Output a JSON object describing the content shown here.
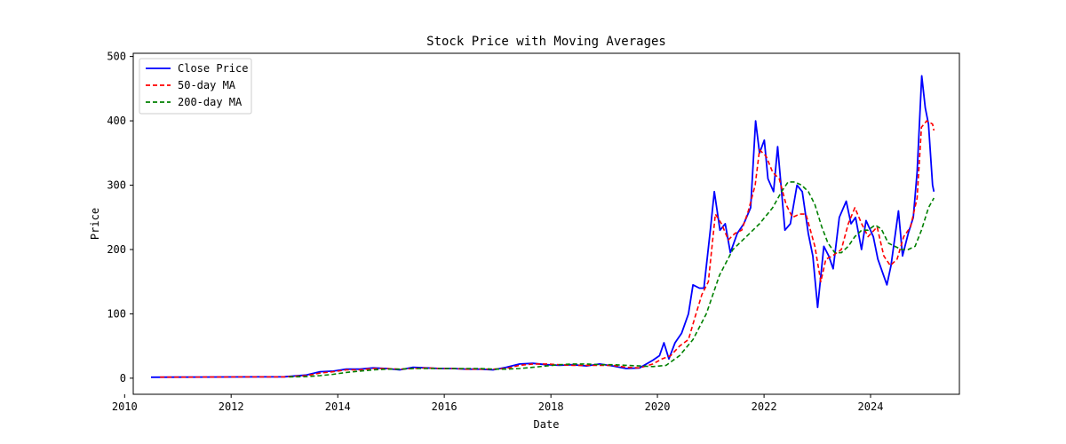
{
  "chart_data": {
    "type": "line",
    "title": "Stock Price with Moving Averages",
    "xlabel": "Date",
    "ylabel": "Price",
    "xlim": [
      "2010-03-01",
      "2025-09-01"
    ],
    "ylim": [
      -25,
      505
    ],
    "x_ticks": [
      "2010",
      "2012",
      "2014",
      "2016",
      "2018",
      "2020",
      "2022",
      "2024"
    ],
    "y_ticks": [
      0,
      100,
      200,
      300,
      400,
      500
    ],
    "grid": false,
    "legend_position": "upper-left",
    "series": [
      {
        "name": "Close Price",
        "color": "#0000ff",
        "style": "solid",
        "x": [
          "2010-07-01",
          "2011-01-01",
          "2011-07-01",
          "2012-01-01",
          "2012-07-01",
          "2013-01-01",
          "2013-06-01",
          "2013-09-01",
          "2013-12-01",
          "2014-03-01",
          "2014-06-01",
          "2014-09-01",
          "2014-12-01",
          "2015-03-01",
          "2015-06-01",
          "2015-09-01",
          "2015-12-01",
          "2016-03-01",
          "2016-06-01",
          "2016-09-01",
          "2016-12-01",
          "2017-03-01",
          "2017-06-01",
          "2017-09-01",
          "2017-12-01",
          "2018-03-01",
          "2018-06-01",
          "2018-09-01",
          "2018-12-01",
          "2019-03-01",
          "2019-06-01",
          "2019-09-01",
          "2019-12-01",
          "2020-01-15",
          "2020-02-15",
          "2020-03-20",
          "2020-05-01",
          "2020-06-15",
          "2020-08-01",
          "2020-09-01",
          "2020-10-15",
          "2020-11-15",
          "2020-12-31",
          "2021-01-25",
          "2021-03-05",
          "2021-04-10",
          "2021-05-15",
          "2021-07-01",
          "2021-08-15",
          "2021-10-01",
          "2021-11-04",
          "2021-12-01",
          "2022-01-03",
          "2022-01-28",
          "2022-03-07",
          "2022-04-04",
          "2022-05-24",
          "2022-06-30",
          "2022-08-15",
          "2022-09-20",
          "2022-10-31",
          "2022-12-01",
          "2023-01-03",
          "2023-02-15",
          "2023-03-20",
          "2023-04-20",
          "2023-06-01",
          "2023-07-18",
          "2023-08-20",
          "2023-09-20",
          "2023-10-31",
          "2023-12-01",
          "2024-01-20",
          "2024-02-20",
          "2024-04-22",
          "2024-05-20",
          "2024-07-10",
          "2024-08-07",
          "2024-09-15",
          "2024-10-20",
          "2024-11-15",
          "2024-12-17",
          "2025-01-10",
          "2025-02-01",
          "2025-03-01",
          "2025-03-10"
        ],
        "y": [
          1.5,
          1.7,
          1.8,
          1.9,
          2.0,
          2.2,
          5,
          10,
          11,
          14,
          14,
          16,
          15,
          13,
          17,
          16,
          15,
          15,
          14,
          14,
          13,
          17,
          22,
          23,
          21,
          20,
          21,
          19,
          22,
          19,
          15,
          16,
          28,
          35,
          55,
          30,
          55,
          70,
          100,
          145,
          140,
          140,
          235,
          290,
          230,
          240,
          195,
          225,
          240,
          265,
          400,
          350,
          370,
          310,
          290,
          360,
          230,
          240,
          300,
          290,
          225,
          190,
          110,
          205,
          190,
          170,
          250,
          275,
          240,
          250,
          200,
          245,
          220,
          185,
          145,
          175,
          260,
          190,
          225,
          250,
          320,
          470,
          420,
          395,
          300,
          290
        ]
      },
      {
        "name": "50-day MA",
        "color": "#ff0000",
        "style": "dashed",
        "x": [
          "2010-09-01",
          "2011-01-01",
          "2011-07-01",
          "2012-01-01",
          "2012-07-01",
          "2013-01-01",
          "2013-06-01",
          "2013-09-01",
          "2013-12-01",
          "2014-03-01",
          "2014-06-01",
          "2014-09-01",
          "2014-12-01",
          "2015-03-01",
          "2015-06-01",
          "2015-09-01",
          "2015-12-01",
          "2016-03-01",
          "2016-06-01",
          "2016-09-01",
          "2016-12-01",
          "2017-03-01",
          "2017-06-01",
          "2017-09-01",
          "2017-12-01",
          "2018-03-01",
          "2018-06-01",
          "2018-09-01",
          "2018-12-01",
          "2019-03-01",
          "2019-06-01",
          "2019-09-01",
          "2019-12-01",
          "2020-02-01",
          "2020-04-01",
          "2020-06-01",
          "2020-08-01",
          "2020-09-15",
          "2020-11-01",
          "2020-12-15",
          "2021-02-01",
          "2021-03-15",
          "2021-05-01",
          "2021-06-15",
          "2021-08-01",
          "2021-09-15",
          "2021-11-01",
          "2021-12-01",
          "2022-01-15",
          "2022-03-01",
          "2022-04-15",
          "2022-06-01",
          "2022-07-15",
          "2022-09-01",
          "2022-10-15",
          "2022-11-15",
          "2022-12-15",
          "2023-01-25",
          "2023-03-01",
          "2023-04-15",
          "2023-06-15",
          "2023-08-01",
          "2023-09-15",
          "2023-11-01",
          "2023-12-15",
          "2024-02-15",
          "2024-04-01",
          "2024-05-15",
          "2024-07-01",
          "2024-08-15",
          "2024-10-01",
          "2024-11-15",
          "2024-12-15",
          "2025-01-20",
          "2025-03-01",
          "2025-03-10"
        ],
        "y": [
          1.6,
          1.7,
          1.8,
          1.9,
          2.0,
          2.1,
          4,
          8,
          10,
          13,
          13,
          15,
          15,
          14,
          15,
          16,
          15,
          15,
          14,
          14,
          14,
          15,
          20,
          22,
          22,
          21,
          20,
          20,
          20,
          20,
          17,
          16,
          22,
          30,
          35,
          50,
          60,
          95,
          130,
          150,
          255,
          240,
          215,
          225,
          230,
          260,
          300,
          355,
          345,
          320,
          310,
          270,
          250,
          255,
          255,
          230,
          205,
          150,
          185,
          190,
          200,
          240,
          265,
          240,
          220,
          235,
          190,
          175,
          185,
          220,
          235,
          280,
          390,
          400,
          395,
          385
        ]
      },
      {
        "name": "200-day MA",
        "color": "#008000",
        "style": "dashed",
        "x": [
          "2013-02-01",
          "2013-06-01",
          "2013-09-01",
          "2013-12-01",
          "2014-03-01",
          "2014-06-01",
          "2014-09-01",
          "2014-12-01",
          "2015-03-01",
          "2015-06-01",
          "2015-09-01",
          "2015-12-01",
          "2016-03-01",
          "2016-06-01",
          "2016-09-01",
          "2016-12-01",
          "2017-03-01",
          "2017-06-01",
          "2017-09-01",
          "2017-12-01",
          "2018-03-01",
          "2018-06-01",
          "2018-09-01",
          "2018-12-01",
          "2019-03-01",
          "2019-06-01",
          "2019-09-01",
          "2019-12-01",
          "2020-03-01",
          "2020-06-01",
          "2020-09-01",
          "2020-12-01",
          "2021-03-01",
          "2021-06-01",
          "2021-09-01",
          "2021-12-01",
          "2022-03-01",
          "2022-05-01",
          "2022-06-15",
          "2022-08-01",
          "2022-09-15",
          "2022-11-01",
          "2022-12-15",
          "2023-02-01",
          "2023-03-15",
          "2023-05-01",
          "2023-06-15",
          "2023-08-01",
          "2023-09-15",
          "2023-11-01",
          "2023-12-15",
          "2024-02-01",
          "2024-03-15",
          "2024-05-01",
          "2024-06-15",
          "2024-08-01",
          "2024-09-15",
          "2024-11-01",
          "2024-12-15",
          "2025-02-01",
          "2025-03-10"
        ],
        "y": [
          2.0,
          2.5,
          4,
          6,
          9,
          11,
          13,
          14,
          14,
          15,
          15,
          15,
          15,
          15,
          15,
          14,
          14,
          15,
          17,
          19,
          21,
          22,
          22,
          21,
          21,
          20,
          19,
          18,
          20,
          35,
          60,
          100,
          160,
          200,
          220,
          240,
          265,
          290,
          305,
          305,
          300,
          290,
          270,
          235,
          210,
          195,
          195,
          205,
          220,
          230,
          230,
          238,
          232,
          210,
          205,
          200,
          200,
          205,
          230,
          265,
          280
        ]
      }
    ]
  }
}
